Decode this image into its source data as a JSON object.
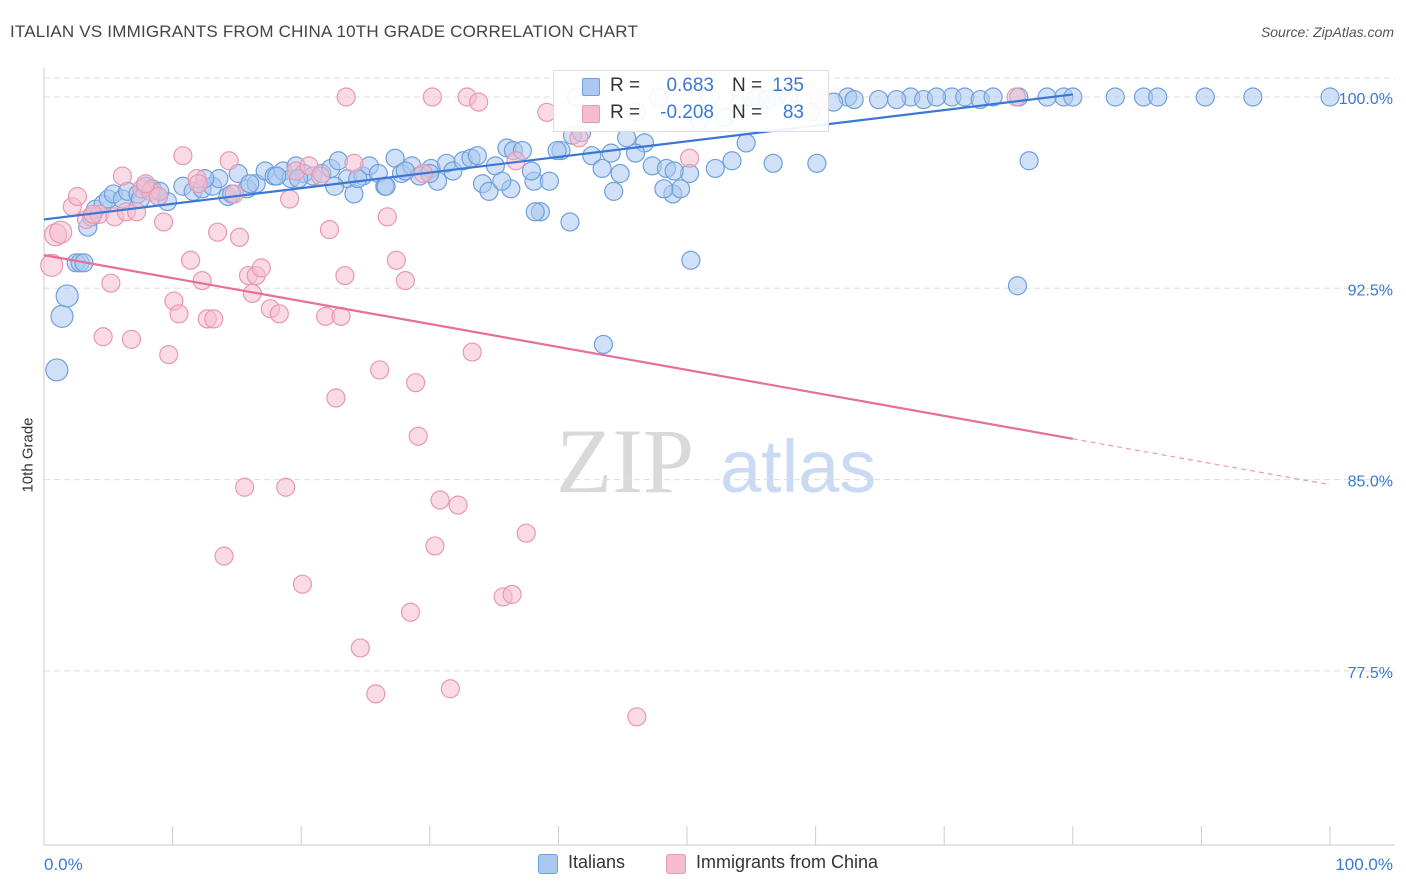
{
  "title": "ITALIAN VS IMMIGRANTS FROM CHINA 10TH GRADE CORRELATION CHART",
  "source": "Source: ZipAtlas.com",
  "watermark": {
    "zip": "ZIP",
    "atlas": "atlas"
  },
  "legend_top": {
    "rows": [
      {
        "r_key": "R =",
        "r_value": "0.683",
        "n_key": "N =",
        "n_value": "135"
      },
      {
        "r_key": "R =",
        "r_value": "-0.208",
        "n_key": "N =",
        "n_value": "83"
      }
    ]
  },
  "legend_bottom": [
    "Italians",
    "Immigrants from China"
  ],
  "colors": {
    "blue_fill": "#aac8f0",
    "blue_stroke": "#6f9fdc",
    "blue_line": "#3a78d4",
    "blue_text": "#3a78d4",
    "pink_fill": "#f5bccd",
    "pink_stroke": "#e898b2",
    "pink_line": "#e56f98",
    "grid": "#dddddd",
    "axis_tick_text": "#3a78d4"
  },
  "chart_data": {
    "type": "scatter",
    "title": "ITALIAN VS IMMIGRANTS FROM CHINA 10TH GRADE CORRELATION CHART",
    "xlabel": "",
    "ylabel": "10th Grade",
    "xlim": [
      0,
      100
    ],
    "ylim": [
      70.0,
      100.8
    ],
    "x_tick_labels": [
      "0.0%",
      "100.0%"
    ],
    "y_ticks": [
      77.5,
      85.0,
      92.5,
      100.0
    ],
    "y_tick_labels": [
      "77.5%",
      "85.0%",
      "92.5%",
      "100.0%"
    ],
    "grid": true,
    "legend": "bottom-center",
    "series": [
      {
        "name": "Italians",
        "r": 0.683,
        "n": 135,
        "trend": {
          "x": [
            0,
            80
          ],
          "y": [
            95.2,
            100.1
          ]
        },
        "points": [
          [
            1.0,
            89.3
          ],
          [
            1.4,
            91.4
          ],
          [
            1.8,
            92.2
          ],
          [
            2.5,
            93.5
          ],
          [
            2.8,
            93.5
          ],
          [
            3.4,
            94.9
          ],
          [
            3.7,
            95.3
          ],
          [
            4.0,
            95.6
          ],
          [
            4.6,
            95.8
          ],
          [
            5.0,
            96.0
          ],
          [
            5.4,
            96.2
          ],
          [
            6.1,
            96.0
          ],
          [
            6.5,
            96.3
          ],
          [
            7.3,
            96.2
          ],
          [
            7.9,
            96.5
          ],
          [
            8.4,
            96.4
          ],
          [
            8.9,
            96.1
          ],
          [
            9.6,
            95.9
          ],
          [
            10.8,
            96.5
          ],
          [
            11.6,
            96.3
          ],
          [
            12.3,
            96.4
          ],
          [
            13.1,
            96.5
          ],
          [
            13.6,
            96.8
          ],
          [
            14.3,
            96.1
          ],
          [
            15.1,
            97.0
          ],
          [
            15.8,
            96.4
          ],
          [
            16.5,
            96.6
          ],
          [
            17.2,
            97.1
          ],
          [
            17.9,
            96.9
          ],
          [
            18.6,
            97.1
          ],
          [
            19.2,
            96.8
          ],
          [
            19.6,
            97.3
          ],
          [
            20.2,
            97.0
          ],
          [
            20.9,
            96.9
          ],
          [
            21.6,
            97.0
          ],
          [
            22.3,
            97.2
          ],
          [
            22.9,
            97.5
          ],
          [
            23.6,
            96.8
          ],
          [
            24.1,
            96.2
          ],
          [
            24.8,
            96.9
          ],
          [
            25.3,
            97.3
          ],
          [
            26.0,
            97.0
          ],
          [
            26.5,
            96.5
          ],
          [
            27.3,
            97.6
          ],
          [
            27.8,
            97.0
          ],
          [
            28.6,
            97.3
          ],
          [
            29.2,
            96.9
          ],
          [
            30.1,
            97.2
          ],
          [
            30.6,
            96.7
          ],
          [
            31.3,
            97.4
          ],
          [
            31.8,
            97.1
          ],
          [
            32.6,
            97.5
          ],
          [
            33.2,
            97.6
          ],
          [
            34.1,
            96.6
          ],
          [
            34.6,
            96.3
          ],
          [
            35.1,
            97.3
          ],
          [
            36.0,
            98.0
          ],
          [
            36.5,
            97.9
          ],
          [
            37.2,
            97.9
          ],
          [
            38.1,
            96.7
          ],
          [
            38.6,
            95.5
          ],
          [
            39.3,
            96.7
          ],
          [
            40.2,
            97.9
          ],
          [
            40.9,
            95.1
          ],
          [
            41.1,
            98.5
          ],
          [
            41.4,
            100.0
          ],
          [
            42.6,
            97.7
          ],
          [
            43.4,
            97.2
          ],
          [
            44.1,
            97.8
          ],
          [
            44.8,
            97.0
          ],
          [
            45.3,
            98.4
          ],
          [
            46.1,
            99.4
          ],
          [
            46.7,
            98.2
          ],
          [
            47.3,
            97.3
          ],
          [
            47.8,
            100.0
          ],
          [
            48.4,
            97.2
          ],
          [
            48.9,
            96.2
          ],
          [
            49.5,
            96.4
          ],
          [
            50.2,
            97.0
          ],
          [
            50.3,
            93.6
          ],
          [
            51.0,
            99.1
          ],
          [
            51.8,
            100.0
          ],
          [
            53.0,
            99.2
          ],
          [
            53.5,
            97.5
          ],
          [
            54.0,
            99.7
          ],
          [
            55.0,
            100.0
          ],
          [
            55.5,
            100.0
          ],
          [
            56.2,
            99.9
          ],
          [
            56.7,
            97.4
          ],
          [
            57.0,
            100.0
          ],
          [
            57.9,
            100.0
          ],
          [
            59.6,
            99.4
          ],
          [
            60.1,
            97.4
          ],
          [
            62.5,
            100.0
          ],
          [
            63.0,
            99.9
          ],
          [
            64.9,
            99.9
          ],
          [
            67.4,
            100.0
          ],
          [
            68.4,
            99.9
          ],
          [
            70.6,
            100.0
          ],
          [
            71.6,
            100.0
          ],
          [
            72.8,
            99.9
          ],
          [
            73.8,
            100.0
          ],
          [
            75.8,
            100.0
          ],
          [
            76.6,
            97.5
          ],
          [
            79.3,
            100.0
          ],
          [
            80.0,
            100.0
          ],
          [
            83.3,
            100.0
          ],
          [
            85.5,
            100.0
          ],
          [
            86.6,
            100.0
          ],
          [
            90.3,
            100.0
          ],
          [
            100.0,
            100.0
          ],
          [
            38.2,
            95.5
          ],
          [
            43.5,
            90.3
          ],
          [
            75.7,
            92.6
          ],
          [
            3.1,
            93.5
          ],
          [
            41.8,
            98.6
          ],
          [
            26.6,
            96.5
          ],
          [
            19.8,
            96.8
          ],
          [
            44.3,
            96.3
          ],
          [
            36.3,
            96.4
          ],
          [
            22.6,
            96.5
          ],
          [
            30.0,
            97.0
          ],
          [
            9.0,
            96.3
          ],
          [
            7.5,
            96.0
          ],
          [
            48.2,
            96.4
          ],
          [
            12.5,
            96.8
          ],
          [
            18.1,
            96.9
          ],
          [
            14.6,
            96.2
          ],
          [
            16.0,
            96.6
          ],
          [
            24.4,
            96.8
          ],
          [
            28.1,
            97.1
          ],
          [
            33.7,
            97.7
          ],
          [
            35.6,
            96.7
          ],
          [
            37.9,
            97.1
          ],
          [
            39.9,
            97.9
          ],
          [
            46.0,
            97.8
          ],
          [
            49.0,
            97.1
          ],
          [
            52.2,
            97.2
          ],
          [
            54.6,
            98.2
          ],
          [
            58.4,
            99.5
          ],
          [
            61.4,
            99.8
          ],
          [
            66.3,
            99.9
          ],
          [
            69.4,
            100.0
          ],
          [
            78.0,
            100.0
          ],
          [
            94.0,
            100.0
          ]
        ]
      },
      {
        "name": "Immigrants from China",
        "r": -0.208,
        "n": 83,
        "trend": {
          "x": [
            0,
            80
          ],
          "y": [
            93.8,
            86.6
          ]
        },
        "trend_dashed": {
          "x": [
            80,
            100
          ],
          "y": [
            86.6,
            84.8
          ]
        },
        "points": [
          [
            0.6,
            93.4
          ],
          [
            0.9,
            94.6
          ],
          [
            1.3,
            94.7
          ],
          [
            2.2,
            95.7
          ],
          [
            2.6,
            96.1
          ],
          [
            3.3,
            95.2
          ],
          [
            4.3,
            95.4
          ],
          [
            4.6,
            90.6
          ],
          [
            5.2,
            92.7
          ],
          [
            5.5,
            95.3
          ],
          [
            6.1,
            96.9
          ],
          [
            6.4,
            95.5
          ],
          [
            6.8,
            90.5
          ],
          [
            7.2,
            95.5
          ],
          [
            7.6,
            96.4
          ],
          [
            8.3,
            96.3
          ],
          [
            8.9,
            96.1
          ],
          [
            9.3,
            95.1
          ],
          [
            9.7,
            89.9
          ],
          [
            10.1,
            92.0
          ],
          [
            10.5,
            91.5
          ],
          [
            10.8,
            97.7
          ],
          [
            11.4,
            93.6
          ],
          [
            11.9,
            96.8
          ],
          [
            12.3,
            92.8
          ],
          [
            12.7,
            91.3
          ],
          [
            13.2,
            91.3
          ],
          [
            13.5,
            94.7
          ],
          [
            14.0,
            82.0
          ],
          [
            14.4,
            97.5
          ],
          [
            14.8,
            96.2
          ],
          [
            15.2,
            94.5
          ],
          [
            15.6,
            84.7
          ],
          [
            15.9,
            93.0
          ],
          [
            16.2,
            92.3
          ],
          [
            16.5,
            93.0
          ],
          [
            16.9,
            93.3
          ],
          [
            17.6,
            91.7
          ],
          [
            18.3,
            91.5
          ],
          [
            18.8,
            84.7
          ],
          [
            19.1,
            96.0
          ],
          [
            19.6,
            97.1
          ],
          [
            20.1,
            80.9
          ],
          [
            20.6,
            97.3
          ],
          [
            21.5,
            96.9
          ],
          [
            21.9,
            91.4
          ],
          [
            22.2,
            94.8
          ],
          [
            22.7,
            88.2
          ],
          [
            23.1,
            91.4
          ],
          [
            23.4,
            93.0
          ],
          [
            24.1,
            97.4
          ],
          [
            24.6,
            78.4
          ],
          [
            25.8,
            76.6
          ],
          [
            26.1,
            89.3
          ],
          [
            26.7,
            95.3
          ],
          [
            27.4,
            93.6
          ],
          [
            28.1,
            92.8
          ],
          [
            28.5,
            79.8
          ],
          [
            28.9,
            88.8
          ],
          [
            29.1,
            86.7
          ],
          [
            29.5,
            97.0
          ],
          [
            30.2,
            100.0
          ],
          [
            30.8,
            84.2
          ],
          [
            30.4,
            82.4
          ],
          [
            31.6,
            76.8
          ],
          [
            32.2,
            84.0
          ],
          [
            32.9,
            100.0
          ],
          [
            33.3,
            90.0
          ],
          [
            33.8,
            99.8
          ],
          [
            35.7,
            80.4
          ],
          [
            36.4,
            80.5
          ],
          [
            36.7,
            97.5
          ],
          [
            37.5,
            82.9
          ],
          [
            39.1,
            99.4
          ],
          [
            41.6,
            98.4
          ],
          [
            46.1,
            75.7
          ],
          [
            50.2,
            97.6
          ],
          [
            60.3,
            99.9
          ],
          [
            75.6,
            100.0
          ],
          [
            23.5,
            100.0
          ],
          [
            3.8,
            95.4
          ],
          [
            7.9,
            96.6
          ],
          [
            12.0,
            96.6
          ]
        ]
      }
    ]
  }
}
